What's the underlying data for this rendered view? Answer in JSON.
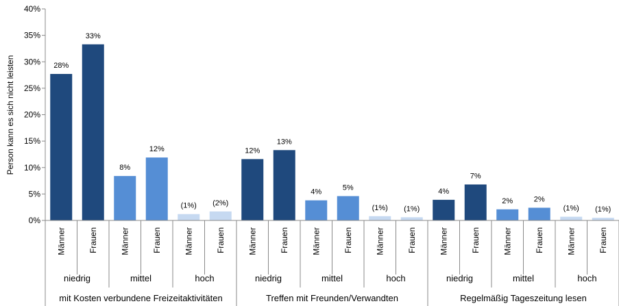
{
  "chart_data": {
    "type": "bar",
    "title": "",
    "xlabel": "",
    "ylabel": "Person kann es sich nicht leisten",
    "ylim": [
      0,
      40
    ],
    "yticks": [
      "0%",
      "5%",
      "10%",
      "15%",
      "20%",
      "25%",
      "30%",
      "35%",
      "40%"
    ],
    "grid": false,
    "legend": "none",
    "colors": {
      "niedrig": "#1f497d",
      "mittel": "#558ed5",
      "hoch": "#c6d9f1"
    },
    "groups": [
      {
        "label": "mit Kosten verbundene Freizeitaktivitäten",
        "levels": [
          {
            "label": "niedrig",
            "bars": [
              {
                "gender": "Männer",
                "value": 27.7,
                "label": "28%"
              },
              {
                "gender": "Frauen",
                "value": 33.3,
                "label": "33%"
              }
            ]
          },
          {
            "label": "mittel",
            "bars": [
              {
                "gender": "Männer",
                "value": 8.4,
                "label": "8%"
              },
              {
                "gender": "Frauen",
                "value": 11.9,
                "label": "12%"
              }
            ]
          },
          {
            "label": "hoch",
            "bars": [
              {
                "gender": "Männer",
                "value": 1.2,
                "label": "(1%)"
              },
              {
                "gender": "Frauen",
                "value": 1.7,
                "label": "(2%)"
              }
            ]
          }
        ]
      },
      {
        "label": "Treffen mit Freunden/Verwandten",
        "levels": [
          {
            "label": "niedrig",
            "bars": [
              {
                "gender": "Männer",
                "value": 11.6,
                "label": "12%"
              },
              {
                "gender": "Frauen",
                "value": 13.3,
                "label": "13%"
              }
            ]
          },
          {
            "label": "mittel",
            "bars": [
              {
                "gender": "Männer",
                "value": 3.8,
                "label": "4%"
              },
              {
                "gender": "Frauen",
                "value": 4.6,
                "label": "5%"
              }
            ]
          },
          {
            "label": "hoch",
            "bars": [
              {
                "gender": "Männer",
                "value": 0.8,
                "label": "(1%)"
              },
              {
                "gender": "Frauen",
                "value": 0.6,
                "label": "(1%)"
              }
            ]
          }
        ]
      },
      {
        "label": "Regelmäßig Tageszeitung lesen",
        "levels": [
          {
            "label": "niedrig",
            "bars": [
              {
                "gender": "Männer",
                "value": 3.9,
                "label": "4%"
              },
              {
                "gender": "Frauen",
                "value": 6.8,
                "label": "7%"
              }
            ]
          },
          {
            "label": "mittel",
            "bars": [
              {
                "gender": "Männer",
                "value": 2.1,
                "label": "2%"
              },
              {
                "gender": "Frauen",
                "value": 2.4,
                "label": "2%"
              }
            ]
          },
          {
            "label": "hoch",
            "bars": [
              {
                "gender": "Männer",
                "value": 0.7,
                "label": "(1%)"
              },
              {
                "gender": "Frauen",
                "value": 0.5,
                "label": "(1%)"
              }
            ]
          }
        ]
      }
    ]
  }
}
